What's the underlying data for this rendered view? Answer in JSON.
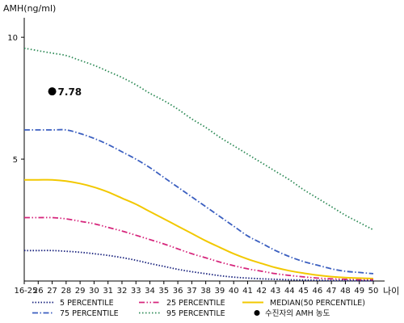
{
  "chart_data": {
    "type": "line",
    "ylabel": "AMH(ng/ml)",
    "xlabel": "나이",
    "ylim": [
      0,
      10.8
    ],
    "yticks": [
      "5",
      "10"
    ],
    "ytick_values": [
      5,
      10
    ],
    "categories": [
      "16-25",
      "26",
      "27",
      "28",
      "29",
      "30",
      "31",
      "32",
      "33",
      "34",
      "35",
      "36",
      "37",
      "38",
      "39",
      "40",
      "41",
      "42",
      "43",
      "44",
      "45",
      "46",
      "47",
      "48",
      "49",
      "50"
    ],
    "x_numeric": [
      25,
      26,
      27,
      28,
      29,
      30,
      31,
      32,
      33,
      34,
      35,
      36,
      37,
      38,
      39,
      40,
      41,
      42,
      43,
      44,
      45,
      46,
      47,
      48,
      49,
      50
    ],
    "series": [
      {
        "name": "95 PERCENTILE",
        "color": "#2e8b57",
        "dash": "1.5,2.5",
        "values": [
          9.55,
          9.45,
          9.35,
          9.25,
          9.05,
          8.85,
          8.6,
          8.35,
          8.05,
          7.7,
          7.4,
          7.05,
          6.65,
          6.3,
          5.9,
          5.55,
          5.2,
          4.85,
          4.5,
          4.15,
          3.75,
          3.4,
          3.05,
          2.7,
          2.4,
          2.1
        ]
      },
      {
        "name": "75 PERCENTILE",
        "color": "#3b5fc0",
        "dash": "7,2.5,1.5,2.5",
        "values": [
          6.2,
          6.2,
          6.2,
          6.2,
          6.05,
          5.85,
          5.6,
          5.3,
          5.0,
          4.65,
          4.25,
          3.85,
          3.45,
          3.05,
          2.65,
          2.25,
          1.85,
          1.55,
          1.25,
          1.0,
          0.8,
          0.65,
          0.5,
          0.4,
          0.35,
          0.3
        ]
      },
      {
        "name": "MEDIAN(50 PERCENTILE)",
        "color": "#f2c800",
        "dash": "",
        "values": [
          4.15,
          4.15,
          4.15,
          4.1,
          4.0,
          3.85,
          3.65,
          3.4,
          3.15,
          2.85,
          2.55,
          2.25,
          1.95,
          1.65,
          1.38,
          1.12,
          0.9,
          0.72,
          0.55,
          0.42,
          0.32,
          0.24,
          0.18,
          0.14,
          0.12,
          0.1
        ]
      },
      {
        "name": "25 PERCENTILE",
        "color": "#d6267c",
        "dash": "7,2.5,1.5,2.5,1.5,2.5",
        "values": [
          2.6,
          2.6,
          2.6,
          2.55,
          2.45,
          2.35,
          2.2,
          2.05,
          1.88,
          1.7,
          1.52,
          1.32,
          1.12,
          0.95,
          0.78,
          0.63,
          0.5,
          0.4,
          0.3,
          0.23,
          0.17,
          0.12,
          0.09,
          0.07,
          0.05,
          0.05
        ]
      },
      {
        "name": "5 PERCENTILE",
        "color": "#1a237e",
        "dash": "1.5,2",
        "values": [
          1.25,
          1.25,
          1.25,
          1.22,
          1.18,
          1.12,
          1.05,
          0.96,
          0.85,
          0.72,
          0.6,
          0.48,
          0.38,
          0.3,
          0.22,
          0.16,
          0.12,
          0.09,
          0.07,
          0.05,
          0.04,
          0.03,
          0.02,
          0.02,
          0.01,
          0.01
        ]
      }
    ],
    "marker": {
      "name": "수진자의 AMH 농도",
      "x": 27,
      "y": 7.78,
      "label": "7.78",
      "color": "#000000"
    },
    "legend": [
      {
        "name": "5 PERCENTILE",
        "color": "#1a237e",
        "dash": "1.5,2"
      },
      {
        "name": "25 PERCENTILE",
        "color": "#d6267c",
        "dash": "7,2.5,1.5,2.5,1.5,2.5"
      },
      {
        "name": "MEDIAN(50 PERCENTILE)",
        "color": "#f2c800",
        "dash": ""
      },
      {
        "name": "75 PERCENTILE",
        "color": "#3b5fc0",
        "dash": "7,2.5,1.5,2.5"
      },
      {
        "name": "95 PERCENTILE",
        "color": "#2e8b57",
        "dash": "1.5,2.5"
      },
      {
        "name": "수진자의 AMH 농도",
        "marker": "dot",
        "color": "#000000"
      }
    ],
    "legend_position": "bottom",
    "grid": false
  }
}
